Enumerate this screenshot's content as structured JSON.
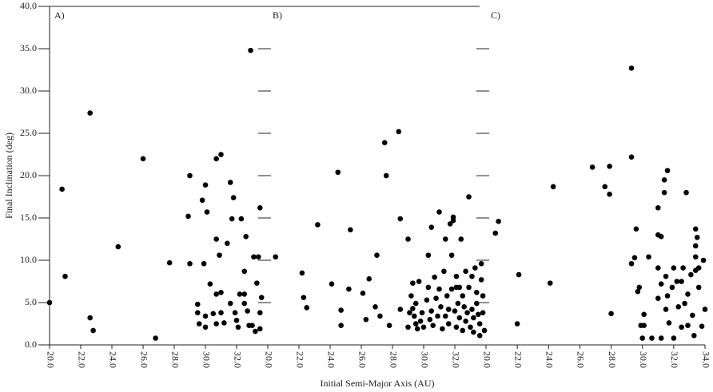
{
  "chart_data": [
    {
      "type": "scatter",
      "label": "A)",
      "ylabel": "Final Inclination (deg)",
      "color": "#000000",
      "xlim": [
        20,
        34
      ],
      "ylim": [
        0,
        40
      ],
      "xticks": [
        {
          "value": 20,
          "label": "20.0"
        },
        {
          "value": 22,
          "label": "22.0"
        },
        {
          "value": 24,
          "label": "24.0"
        },
        {
          "value": 26,
          "label": "26.0"
        },
        {
          "value": 28,
          "label": "28.0"
        },
        {
          "value": 30,
          "label": "30.0"
        },
        {
          "value": 32,
          "label": "32.0"
        }
      ],
      "yticks": [
        {
          "value": 0,
          "label": "0.0"
        },
        {
          "value": 5,
          "label": "5.0"
        },
        {
          "value": 10,
          "label": "10.0"
        },
        {
          "value": 15,
          "label": "15.0"
        },
        {
          "value": 20,
          "label": "20.0"
        },
        {
          "value": 25,
          "label": "25.0"
        },
        {
          "value": 30,
          "label": "30.0"
        },
        {
          "value": 35,
          "label": "35.0"
        },
        {
          "value": 40,
          "label": "40.0"
        }
      ],
      "x": [
        20.0,
        20.8,
        21.0,
        22.6,
        22.6,
        22.8,
        24.4,
        26.0,
        26.8,
        27.7,
        28.9,
        29.0,
        29.0,
        29.5,
        29.5,
        29.6,
        29.8,
        29.9,
        30.0,
        30.1,
        30.0,
        30.0,
        30.3,
        30.5,
        30.7,
        30.7,
        31.0,
        30.7,
        30.9,
        30.7,
        31.0,
        31.0,
        31.2,
        31.4,
        31.6,
        31.7,
        31.6,
        31.8,
        31.9,
        32.0,
        32.1,
        32.3,
        32.2,
        32.5,
        32.5,
        32.5,
        32.6,
        32.7,
        32.8,
        32.9,
        33.0,
        33.1,
        33.3,
        33.5,
        33.6,
        33.5,
        33.5,
        33.2,
        33.4
      ],
      "values": [
        5.0,
        18.4,
        8.1,
        27.4,
        3.2,
        1.7,
        11.6,
        22.0,
        0.8,
        9.7,
        15.2,
        20.0,
        9.6,
        4.8,
        3.8,
        2.5,
        17.1,
        9.6,
        18.9,
        15.7,
        3.4,
        2.1,
        7.2,
        3.7,
        2.5,
        22.0,
        22.5,
        12.5,
        10.6,
        6.0,
        6.2,
        3.8,
        2.6,
        12.0,
        19.2,
        14.9,
        4.9,
        17.4,
        3.8,
        2.9,
        2.1,
        14.9,
        6.0,
        8.7,
        6.0,
        4.9,
        12.8,
        4.0,
        2.3,
        34.8,
        2.3,
        10.4,
        7.3,
        16.2,
        5.6,
        3.8,
        1.9,
        1.6,
        10.4
      ]
    },
    {
      "type": "scatter",
      "label": "B)",
      "xlabel": "Initial Semi-Major Axis (AU)",
      "color": "#000000",
      "ytick_labels": false,
      "xlim": [
        20,
        34
      ],
      "ylim": [
        0,
        40
      ],
      "xticks": [
        {
          "value": 20,
          "label": "20.0"
        },
        {
          "value": 22,
          "label": "22.0"
        },
        {
          "value": 24,
          "label": "24.0"
        },
        {
          "value": 26,
          "label": "26.0"
        },
        {
          "value": 28,
          "label": "28.0"
        },
        {
          "value": 30,
          "label": "30.0"
        },
        {
          "value": 32,
          "label": "32.0"
        }
      ],
      "yticks": [
        5,
        10,
        15,
        20,
        25,
        30,
        35
      ],
      "x": [
        20.5,
        22.2,
        22.3,
        22.5,
        23.2,
        24.1,
        24.5,
        24.7,
        24.7,
        25.2,
        25.3,
        26.1,
        26.3,
        26.5,
        26.9,
        27.0,
        27.2,
        27.5,
        27.6,
        27.8,
        28.4,
        28.5,
        28.5,
        29.0,
        29.0,
        29.2,
        29.3,
        29.4,
        29.5,
        29.6,
        29.1,
        29.3,
        29.5,
        29.7,
        29.8,
        29.9,
        30.0,
        30.2,
        30.3,
        30.3,
        30.4,
        30.5,
        30.5,
        30.6,
        30.7,
        30.8,
        30.9,
        31.0,
        31.0,
        31.1,
        31.2,
        31.3,
        31.4,
        31.4,
        31.5,
        31.6,
        31.6,
        31.7,
        31.8,
        31.8,
        31.9,
        32.0,
        32.1,
        32.1,
        32.2,
        32.3,
        32.3,
        32.4,
        32.5,
        32.5,
        32.6,
        32.7,
        32.7,
        32.8,
        32.9,
        32.9,
        33.0,
        33.1,
        33.1,
        33.2,
        33.2,
        33.3,
        33.4,
        33.4,
        33.5,
        33.6,
        33.6,
        33.7,
        33.7,
        33.8,
        33.8,
        33.9,
        31.9,
        32.1
      ],
      "values": [
        10.4,
        8.5,
        5.6,
        4.4,
        14.2,
        7.2,
        20.4,
        4.1,
        2.3,
        6.6,
        13.6,
        6.1,
        3.0,
        7.8,
        4.5,
        10.6,
        3.4,
        23.9,
        20.0,
        2.3,
        25.2,
        14.9,
        4.2,
        12.5,
        2.1,
        5.8,
        4.3,
        3.4,
        2.5,
        1.9,
        3.8,
        7.3,
        4.9,
        7.5,
        2.8,
        3.8,
        2.1,
        5.3,
        6.8,
        10.6,
        3.0,
        13.9,
        4.0,
        2.3,
        8.0,
        5.5,
        3.4,
        15.7,
        6.6,
        4.5,
        1.9,
        8.7,
        3.4,
        12.5,
        5.8,
        4.2,
        2.5,
        14.3,
        6.6,
        10.6,
        15.1,
        4.0,
        8.1,
        2.1,
        4.9,
        6.8,
        3.2,
        12.5,
        1.7,
        5.8,
        4.5,
        8.7,
        2.8,
        3.8,
        17.5,
        6.8,
        2.1,
        8.1,
        4.2,
        3.2,
        1.5,
        9.1,
        6.2,
        4.9,
        3.6,
        2.5,
        1.1,
        7.7,
        9.6,
        5.8,
        3.8,
        1.7,
        14.7,
        6.8
      ]
    },
    {
      "type": "scatter",
      "label": "C)",
      "color": "#000000",
      "ytick_labels": false,
      "xlim": [
        20,
        34
      ],
      "ylim": [
        0,
        40
      ],
      "xticks": [
        {
          "value": 20,
          "label": "20.0"
        },
        {
          "value": 22,
          "label": "22.0"
        },
        {
          "value": 24,
          "label": "24.0"
        },
        {
          "value": 26,
          "label": "26.0"
        },
        {
          "value": 28,
          "label": "28.0"
        },
        {
          "value": 30,
          "label": "30.0"
        },
        {
          "value": 32,
          "label": "32.0"
        },
        {
          "value": 34,
          "label": "34.0"
        }
      ],
      "yticks": [
        5,
        10,
        15,
        20,
        25,
        30,
        35
      ],
      "x": [
        20.8,
        20.6,
        22.1,
        22.0,
        24.1,
        24.3,
        26.8,
        27.6,
        27.9,
        27.9,
        28.0,
        29.3,
        29.3,
        29.6,
        29.5,
        29.3,
        29.8,
        29.7,
        29.9,
        30.0,
        30.1,
        30.1,
        30.4,
        30.6,
        31.0,
        31.0,
        31.2,
        31.0,
        31.0,
        31.2,
        31.2,
        31.4,
        31.4,
        31.6,
        31.5,
        31.5,
        31.6,
        31.7,
        31.9,
        32.0,
        32.0,
        32.2,
        32.3,
        32.5,
        32.5,
        32.6,
        32.7,
        32.8,
        32.9,
        32.9,
        33.1,
        33.2,
        33.3,
        33.4,
        33.5,
        33.4,
        33.4,
        33.6,
        33.6,
        33.8,
        33.9,
        34.0,
        33.4
      ],
      "values": [
        14.6,
        13.2,
        8.3,
        2.5,
        7.3,
        18.7,
        21.0,
        18.7,
        17.8,
        21.1,
        3.7,
        32.7,
        22.2,
        13.7,
        10.3,
        9.6,
        6.8,
        6.3,
        2.3,
        0.8,
        3.6,
        2.3,
        10.4,
        0.8,
        16.2,
        13.0,
        12.8,
        9.1,
        5.5,
        7.2,
        0.8,
        18.0,
        19.5,
        20.6,
        8.1,
        4.2,
        5.8,
        2.6,
        6.8,
        0.8,
        9.1,
        7.5,
        4.5,
        7.5,
        2.1,
        9.1,
        4.9,
        18.0,
        6.0,
        2.3,
        8.3,
        3.5,
        1.1,
        13.7,
        12.7,
        11.7,
        10.4,
        9.1,
        6.8,
        2.2,
        10.0,
        4.2,
        8.8
      ]
    }
  ]
}
